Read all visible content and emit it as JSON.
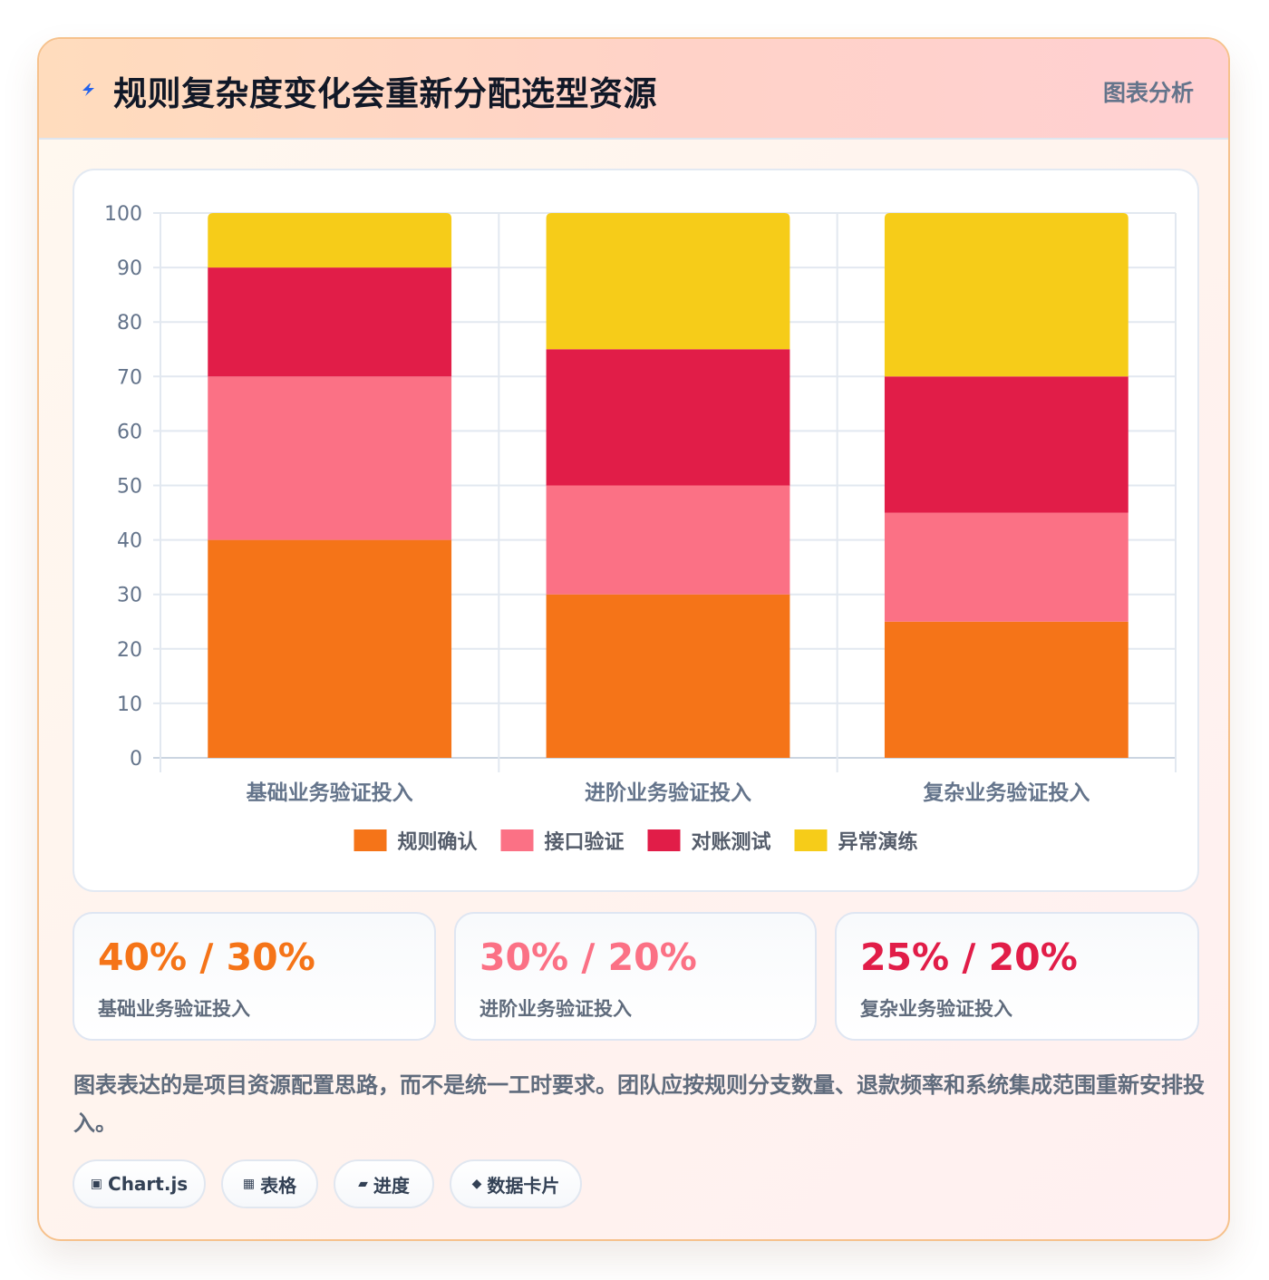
{
  "header": {
    "icon": "lightning-bolt-icon",
    "title": "规则复杂度变化会重新分配选型资源",
    "tag": "图表分析"
  },
  "chart_data": {
    "type": "bar",
    "stacked": true,
    "categories": [
      "基础业务验证投入",
      "进阶业务验证投入",
      "复杂业务验证投入"
    ],
    "series": [
      {
        "name": "规则确认",
        "color": "#f57418",
        "values": [
          40,
          30,
          25
        ]
      },
      {
        "name": "接口验证",
        "color": "#fb7185",
        "values": [
          30,
          20,
          20
        ]
      },
      {
        "name": "对账测试",
        "color": "#e11d48",
        "values": [
          20,
          25,
          25
        ]
      },
      {
        "name": "异常演练",
        "color": "#f6cc19",
        "values": [
          10,
          25,
          30
        ]
      }
    ],
    "ylim": [
      0,
      100
    ],
    "yticks": [
      0,
      10,
      20,
      30,
      40,
      50,
      60,
      70,
      80,
      90,
      100
    ],
    "grid": true,
    "legend_position": "bottom"
  },
  "stats": [
    {
      "value": "40% / 30%",
      "label": "基础业务验证投入",
      "color": "#f57418"
    },
    {
      "value": "30% / 20%",
      "label": "进阶业务验证投入",
      "color": "#fb7185"
    },
    {
      "value": "25% / 20%",
      "label": "复杂业务验证投入",
      "color": "#e11d48"
    }
  ],
  "note": "图表表达的是项目资源配置思路，而不是统一工时要求。团队应按规则分支数量、退款频率和系统集成范围重新安排投入。",
  "pills": [
    {
      "icon": "▣",
      "icon_name": "chart-icon",
      "label": "Chart.js"
    },
    {
      "icon": "▦",
      "icon_name": "table-icon",
      "label": "表格"
    },
    {
      "icon": "▰",
      "icon_name": "progress-icon",
      "label": "进度"
    },
    {
      "icon": "◆",
      "icon_name": "diamond-icon",
      "label": "数据卡片"
    }
  ]
}
